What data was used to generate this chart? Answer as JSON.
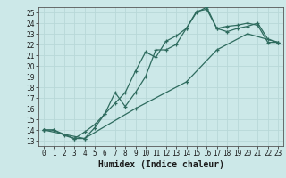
{
  "xlabel": "Humidex (Indice chaleur)",
  "ylabel": "",
  "xlim": [
    -0.5,
    23.5
  ],
  "ylim": [
    12.5,
    25.5
  ],
  "xticks": [
    0,
    1,
    2,
    3,
    4,
    5,
    6,
    7,
    8,
    9,
    10,
    11,
    12,
    13,
    14,
    15,
    16,
    17,
    18,
    19,
    20,
    21,
    22,
    23
  ],
  "yticks": [
    13,
    14,
    15,
    16,
    17,
    18,
    19,
    20,
    21,
    22,
    23,
    24,
    25
  ],
  "bg_color": "#cce8e8",
  "grid_color": "#b8d8d8",
  "line_color": "#2e6b5e",
  "line1_x": [
    0,
    1,
    2,
    3,
    4,
    5,
    6,
    7,
    8,
    9,
    10,
    11,
    12,
    13,
    14,
    15,
    16,
    17,
    18,
    19,
    20,
    21,
    22,
    23
  ],
  "line1_y": [
    14,
    14,
    13.5,
    13.2,
    13.2,
    14.2,
    15.5,
    16.5,
    17.5,
    19.5,
    21.3,
    20.8,
    22.3,
    22.8,
    23.5,
    25.1,
    25.3,
    23.5,
    23.7,
    23.8,
    24.0,
    23.8,
    22.2,
    22.2
  ],
  "line2_x": [
    0,
    1,
    3,
    4,
    5,
    6,
    7,
    8,
    9,
    10,
    11,
    12,
    13,
    14,
    15,
    16,
    17,
    18,
    19,
    20,
    21,
    22,
    23
  ],
  "line2_y": [
    14,
    14,
    13.2,
    13.8,
    14.5,
    15.5,
    17.5,
    16.2,
    17.5,
    19.0,
    21.5,
    21.5,
    22.0,
    23.5,
    25.0,
    25.5,
    23.5,
    23.2,
    23.5,
    23.7,
    24.0,
    22.5,
    22.2
  ],
  "line3_x": [
    0,
    4,
    9,
    14,
    17,
    20,
    23
  ],
  "line3_y": [
    14,
    13.2,
    16.0,
    18.5,
    21.5,
    23.0,
    22.2
  ],
  "xlabel_fontsize": 7,
  "tick_fontsize": 5.5
}
